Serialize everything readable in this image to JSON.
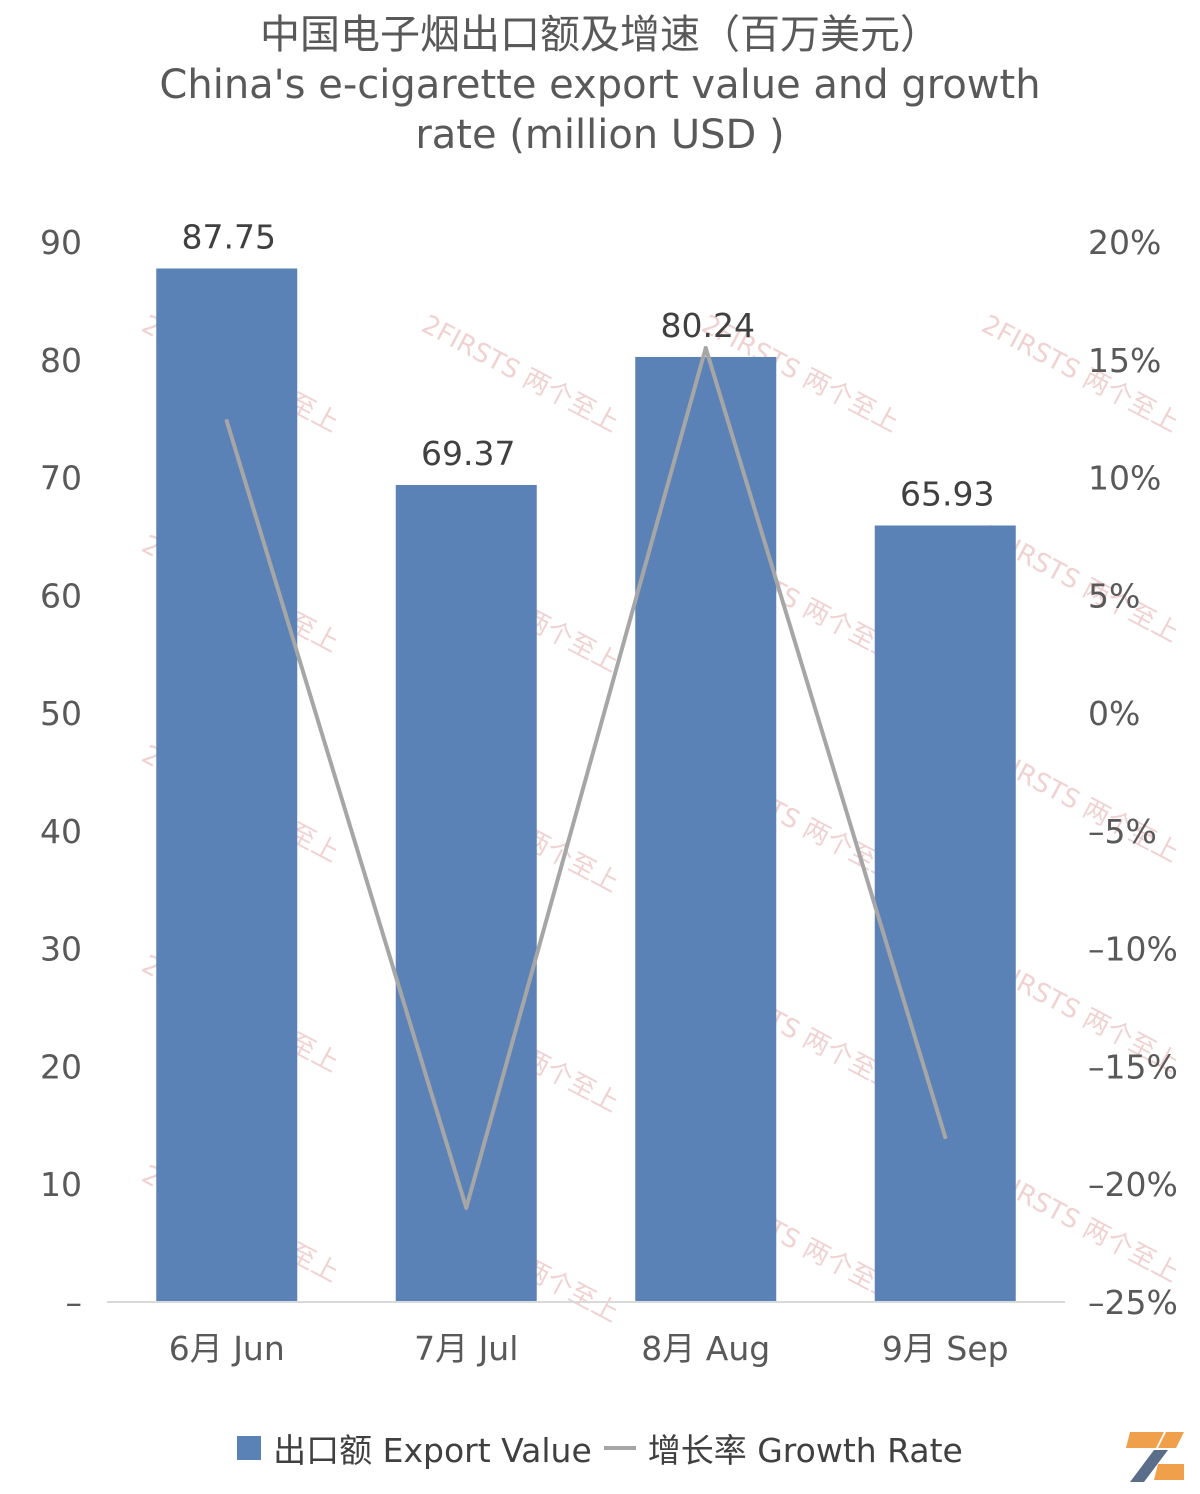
{
  "title": {
    "line1": "中国电子烟出口额及增速（百万美元）",
    "line2": "China's e-cigarette export value and growth",
    "line3": "rate (million USD )"
  },
  "colors": {
    "bar": "#5b82b6",
    "line": "#a6a6a6",
    "axis": "#d9d9d9",
    "watermark": "#e8b4b4"
  },
  "watermark_text": "2FIRSTS 两个至上",
  "legend": {
    "bar_label": "出口额 Export Value",
    "line_label": "增长率 Growth Rate"
  },
  "chart_data": {
    "type": "bar",
    "categories": [
      "6月 Jun",
      "7月 Jul",
      "8月 Aug",
      "9月 Sep"
    ],
    "series": [
      {
        "name": "出口额 Export Value",
        "type": "bar",
        "axis": "left",
        "values": [
          87.75,
          69.37,
          80.24,
          65.93
        ]
      },
      {
        "name": "增长率 Growth Rate",
        "type": "line",
        "axis": "right",
        "values": [
          12.4,
          -21.0,
          15.5,
          -18.0
        ]
      }
    ],
    "left_axis": {
      "ylim": [
        0,
        90
      ],
      "ticks": [
        0,
        10,
        20,
        30,
        40,
        50,
        60,
        70,
        80,
        90
      ],
      "tick_labels": [
        "–",
        "10",
        "20",
        "30",
        "40",
        "50",
        "60",
        "70",
        "80",
        "90"
      ]
    },
    "right_axis": {
      "ylim": [
        -25,
        20
      ],
      "ticks": [
        -25,
        -20,
        -15,
        -10,
        -5,
        0,
        5,
        10,
        15,
        20
      ],
      "tick_labels": [
        "–25%",
        "–20%",
        "–15%",
        "–10%",
        "–5%",
        "0%",
        "5%",
        "10%",
        "15%",
        "20%"
      ]
    },
    "data_labels": [
      "87.75",
      "69.37",
      "80.24",
      "65.93"
    ],
    "grid": false,
    "legend_position": "bottom"
  }
}
